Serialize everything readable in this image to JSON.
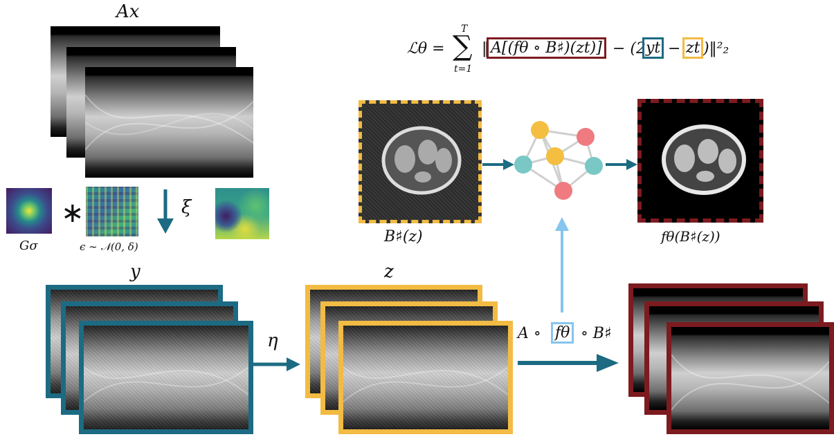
{
  "top_label": "Ax",
  "loss": {
    "lhs": "ℒθ = ",
    "sum_top": "T",
    "sum_bottom": "t=1",
    "term_box": "A[(fθ ∘ B♯)(zt)]",
    "pre_minus": "‖",
    "mid": " − (2",
    "yt": "yt",
    "minus2": " − ",
    "zt": "zt",
    "tail": ")‖²₂"
  },
  "noise": {
    "g_label": "Gσ",
    "conv_symbol": "∗",
    "eps_label": "ϵ ∼ 𝒩(0, δ)",
    "xi_label": "ξ"
  },
  "labels": {
    "y": "y",
    "z": "z",
    "eta": "η",
    "bz": "B♯(z)",
    "fbz": "fθ(B♯(z))",
    "operator_pre": "A ∘ ",
    "operator_box": "fθ",
    "operator_post": " ∘ B♯"
  },
  "colors": {
    "blue": "#1c6b83",
    "gold": "#f2bb43",
    "red": "#7c1b20",
    "light_blue": "#86c5ee",
    "node_gold": "#f4be41",
    "node_pink": "#ef7a80",
    "node_teal": "#79c8c5"
  }
}
